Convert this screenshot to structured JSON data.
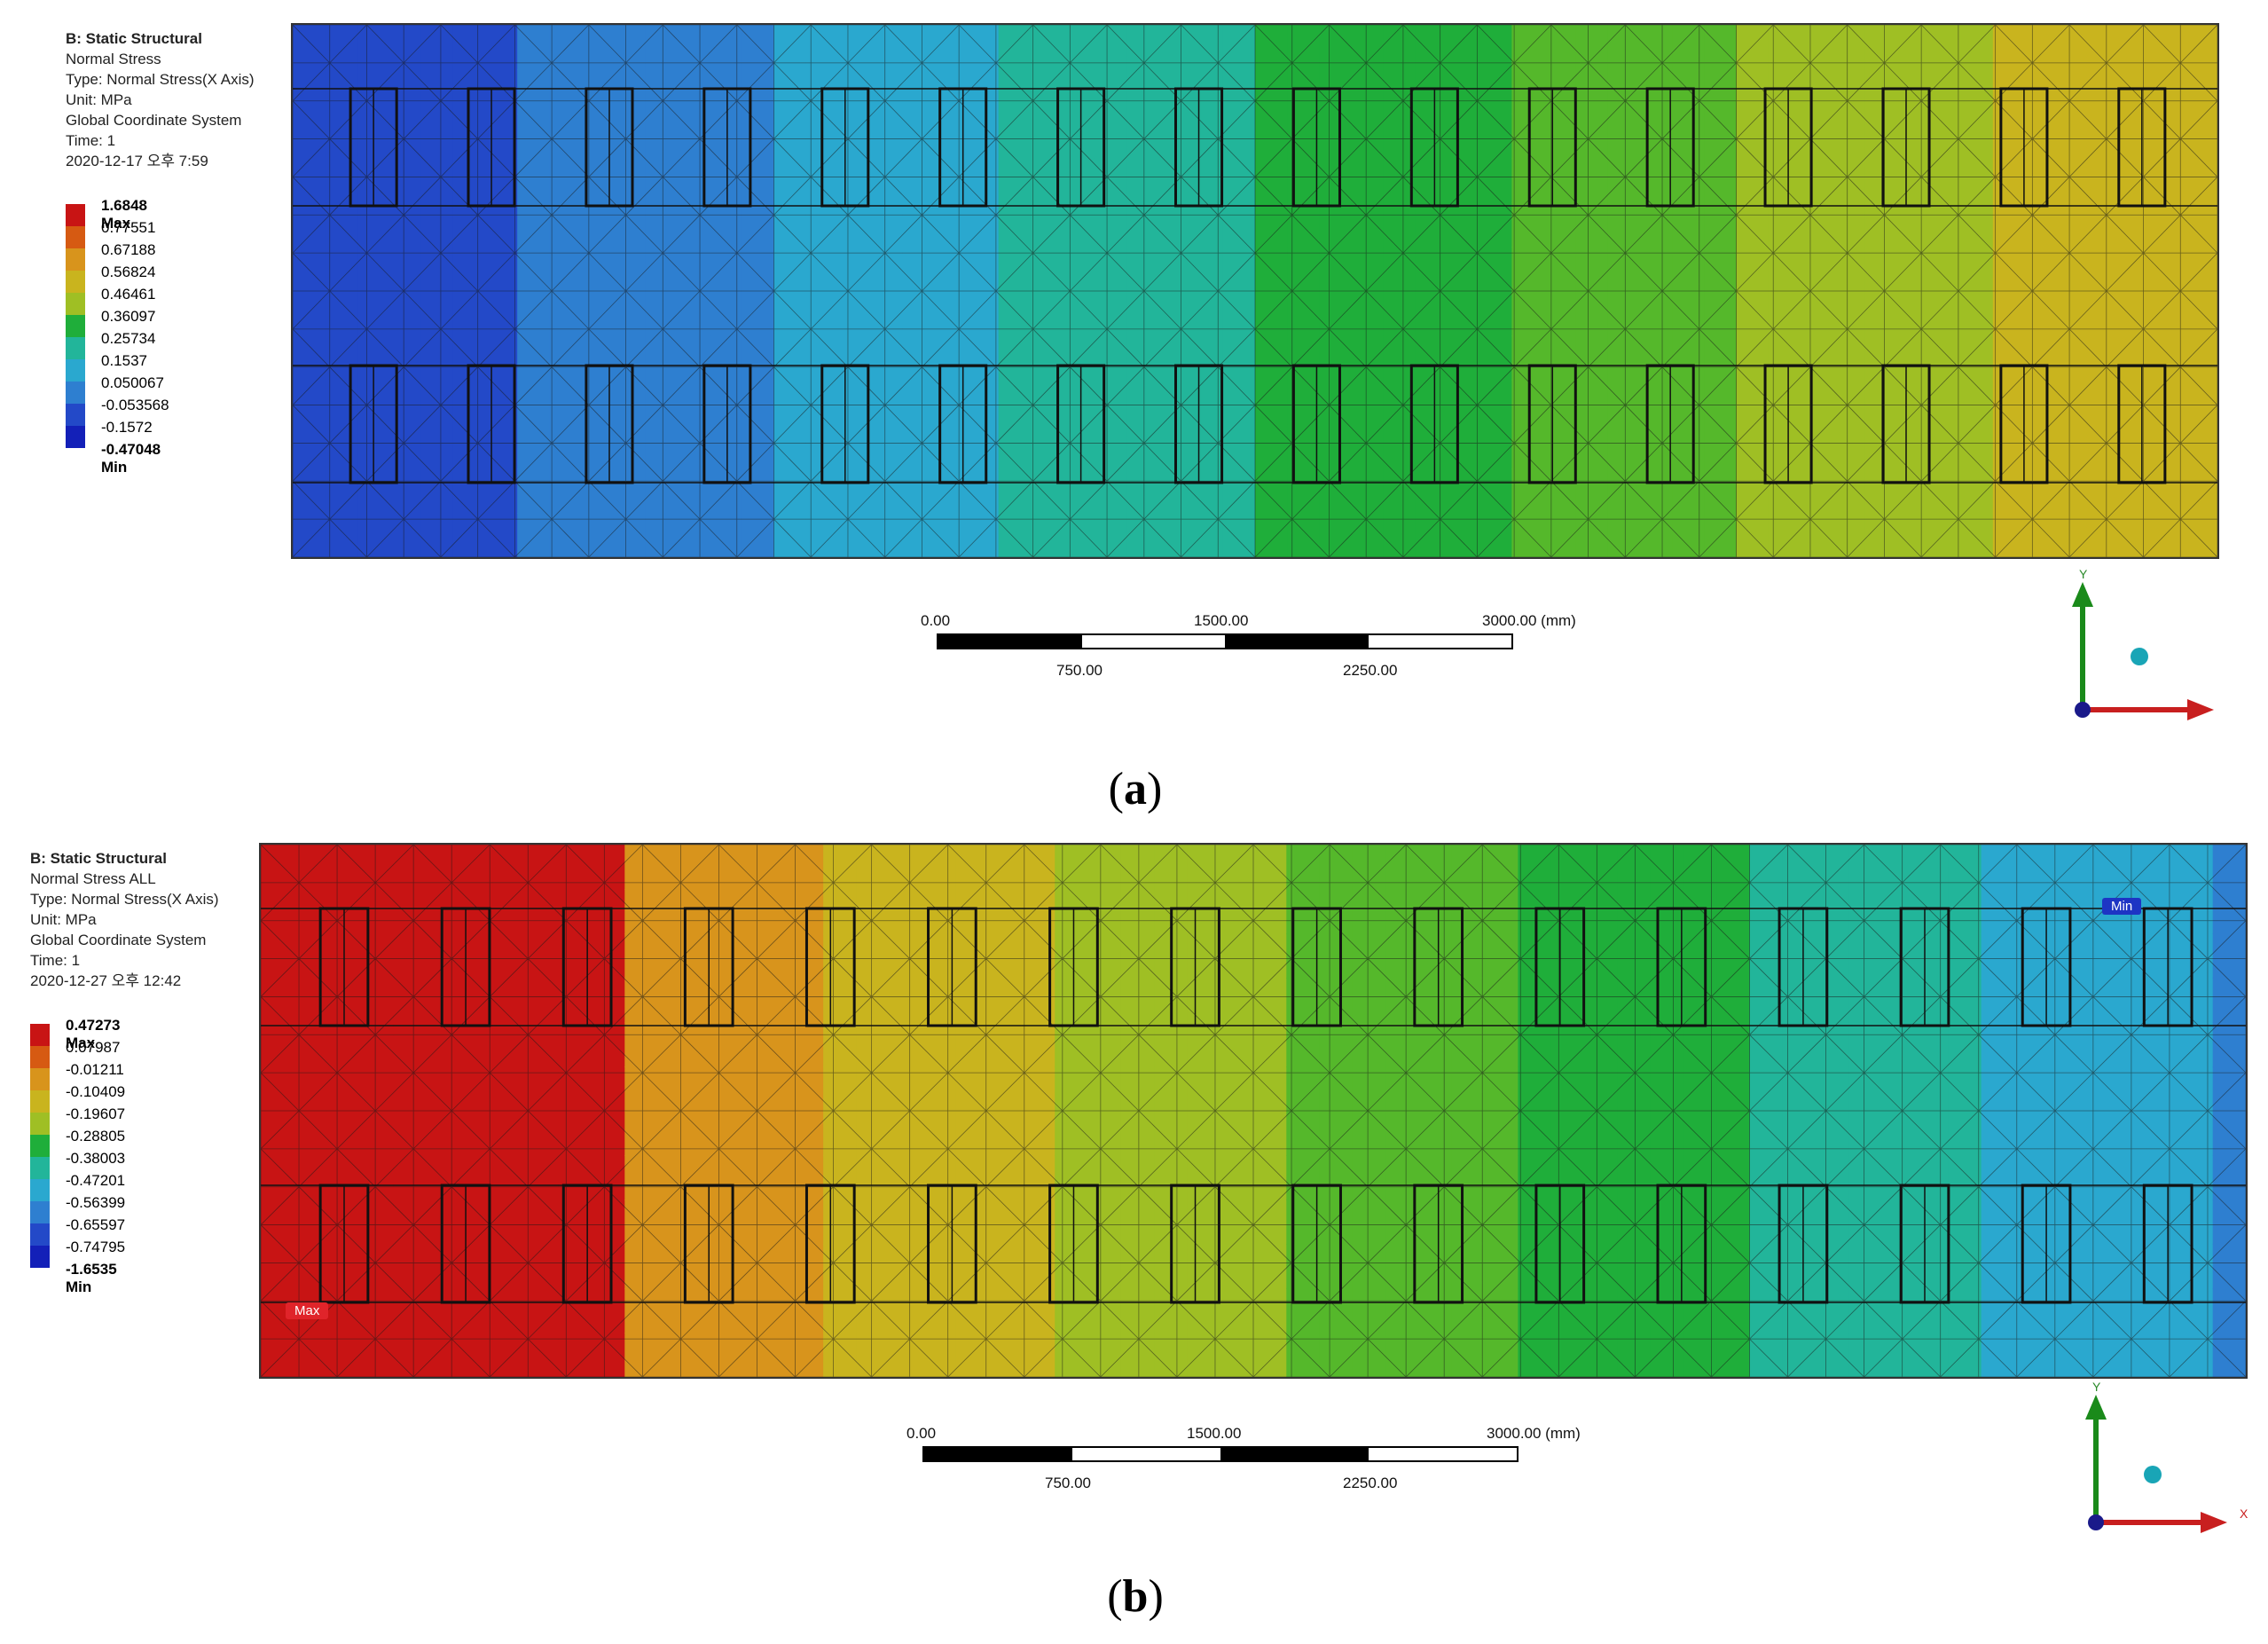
{
  "panel_a": {
    "legend": {
      "title": "B: Static Structural",
      "lines": [
        "Normal Stress",
        "Type: Normal Stress(X Axis)",
        "Unit: MPa",
        "Global Coordinate System",
        "Time: 1",
        "2020-12-17 오후 7:59"
      ],
      "max_label": "1.6848 Max",
      "values": [
        "0.77551",
        "0.67188",
        "0.56824",
        "0.46461",
        "0.36097",
        "0.25734",
        "0.1537",
        "0.050067",
        "-0.053568",
        "-0.1572"
      ],
      "min_label": "-0.47048 Min"
    },
    "scalebar": {
      "t0": "0.00",
      "t1500": "1500.00",
      "t3000": "3000.00 (mm)",
      "t750": "750.00",
      "t2250": "2250.00"
    },
    "caption_letter": "a",
    "axis_y": "Y"
  },
  "panel_b": {
    "legend": {
      "title": "B: Static Structural",
      "lines": [
        "Normal Stress ALL",
        "Type: Normal Stress(X Axis)",
        "Unit: MPa",
        "Global Coordinate System",
        "Time: 1",
        "2020-12-27 오후 12:42"
      ],
      "max_label": "0.47273 Max",
      "values": [
        "0.07987",
        "-0.01211",
        "-0.10409",
        "-0.19607",
        "-0.28805",
        "-0.38003",
        "-0.47201",
        "-0.56399",
        "-0.65597",
        "-0.74795"
      ],
      "min_label": "-1.6535 Min"
    },
    "scalebar": {
      "t0": "0.00",
      "t1500": "1500.00",
      "t3000": "3000.00 (mm)",
      "t750": "750.00",
      "t2250": "2250.00"
    },
    "tags": {
      "max": "Max",
      "min": "Min"
    },
    "caption_letter": "b",
    "axis_y": "Y",
    "axis_x": "X"
  },
  "colors": {
    "contour": [
      "#c81414",
      "#d65a12",
      "#d8941c",
      "#c9b41e",
      "#9fbf24",
      "#55b82b",
      "#1fae3a",
      "#22b59a",
      "#2aa8cf",
      "#2e7fd0",
      "#2349c8",
      "#1320b8"
    ]
  }
}
